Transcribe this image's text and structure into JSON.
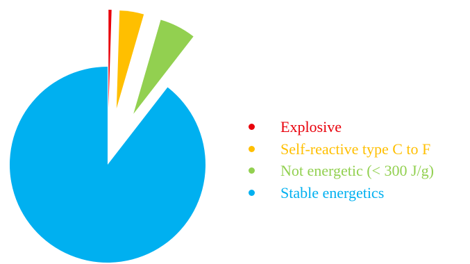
{
  "chart_data": {
    "type": "pie",
    "title": "",
    "exploded": true,
    "slices": [
      {
        "label": "Explosive",
        "value": 0.5,
        "color": "#e8000b"
      },
      {
        "label": "Self-reactive type C to F",
        "value": 4,
        "color": "#ffbf00"
      },
      {
        "label": "Not energetic (< 300 J/g)",
        "value": 6,
        "color": "#92d050"
      },
      {
        "label": "Stable energetics",
        "value": 89.5,
        "color": "#00b0f0"
      }
    ],
    "legend": {
      "placement": "right",
      "entries": [
        "Explosive",
        "Self-reactive type C to F",
        "Not energetic (< 300 J/g)",
        "Stable energetics"
      ]
    }
  }
}
